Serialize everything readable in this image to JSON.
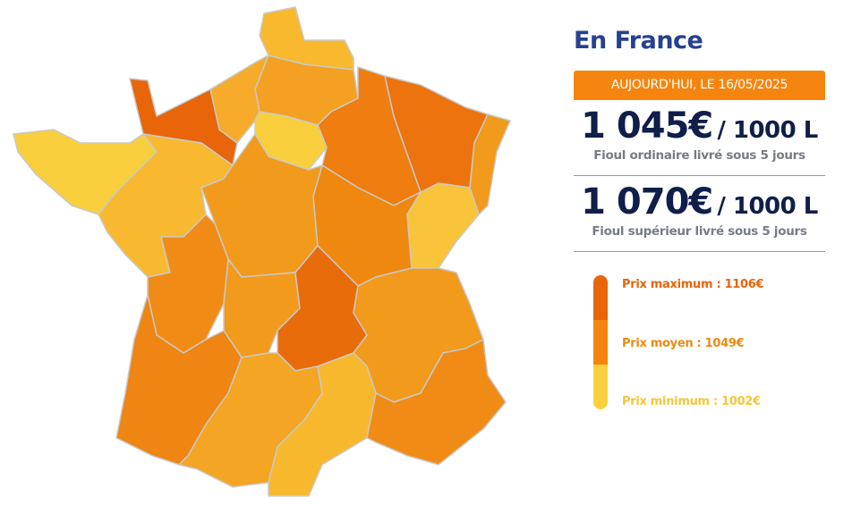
{
  "map": {
    "region_colors": [
      "#f8b92e",
      "#f4a022",
      "#f6ab2a",
      "#e8650a",
      "#f9cf3e",
      "#ef7d10",
      "#ec730e",
      "#f29a1c",
      "#f9cf3e",
      "#f8b830",
      "#f29a1c",
      "#ef880f",
      "#f9c43a",
      "#f08c15",
      "#f29a1c",
      "#e96c0a",
      "#f29a1c",
      "#ef8512",
      "#f4a524",
      "#f8b82e",
      "#f08c15"
    ]
  },
  "panel": {
    "title": "En France",
    "date_label": "AUJOURD'HUI, LE 16/05/2025",
    "ordinary": {
      "price": "1 045€",
      "unit": "/ 1000 L",
      "caption": "Fioul ordinaire livré sous 5 jours"
    },
    "superior": {
      "price": "1 070€",
      "unit": "/ 1000 L",
      "caption": "Fioul supérieur livré sous 5 jours"
    }
  },
  "legend": {
    "max_label": "Prix maximum : 1106€",
    "avg_label": "Prix moyen : 1049€",
    "min_label": "Prix minimum : 1002€",
    "colors": {
      "max": "#e8650a",
      "avg": "#f6850f",
      "min": "#fbd03c"
    }
  }
}
